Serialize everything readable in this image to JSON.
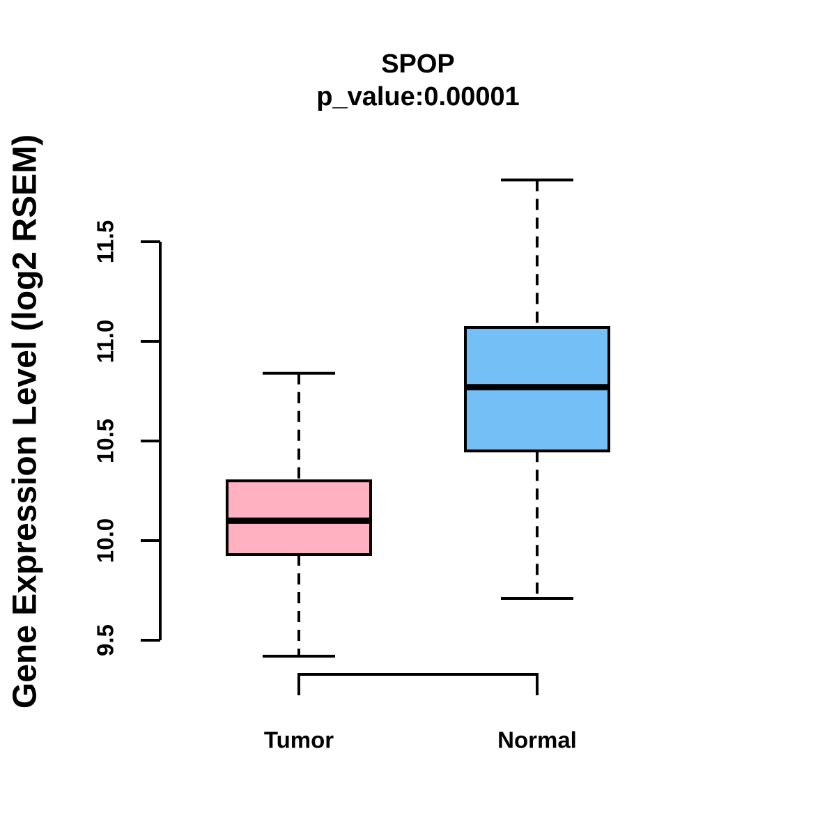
{
  "chart_data": {
    "type": "boxplot",
    "title": "SPOP",
    "subtitle": "p_value:0.00001",
    "xlabel": "",
    "ylabel": "Gene Expression Level (log2 RSEM)",
    "categories": [
      "Tumor",
      "Normal"
    ],
    "y_ticks": [
      {
        "value": 9.5,
        "label": "9.5"
      },
      {
        "value": 10.0,
        "label": "10.0"
      },
      {
        "value": 10.5,
        "label": "10.5"
      },
      {
        "value": 11.0,
        "label": "11.0"
      },
      {
        "value": 11.5,
        "label": "11.5"
      }
    ],
    "ylim": [
      9.3,
      11.9
    ],
    "grid": false,
    "legend": "none",
    "line_color": "#000000",
    "series": [
      {
        "name": "Tumor",
        "fill_color": "#FFB0C1",
        "min": 9.42,
        "q1": 9.93,
        "median": 10.1,
        "q3": 10.3,
        "max": 10.84
      },
      {
        "name": "Normal",
        "fill_color": "#74BFF5",
        "min": 9.71,
        "q1": 10.45,
        "median": 10.77,
        "q3": 11.07,
        "max": 11.81
      }
    ]
  }
}
